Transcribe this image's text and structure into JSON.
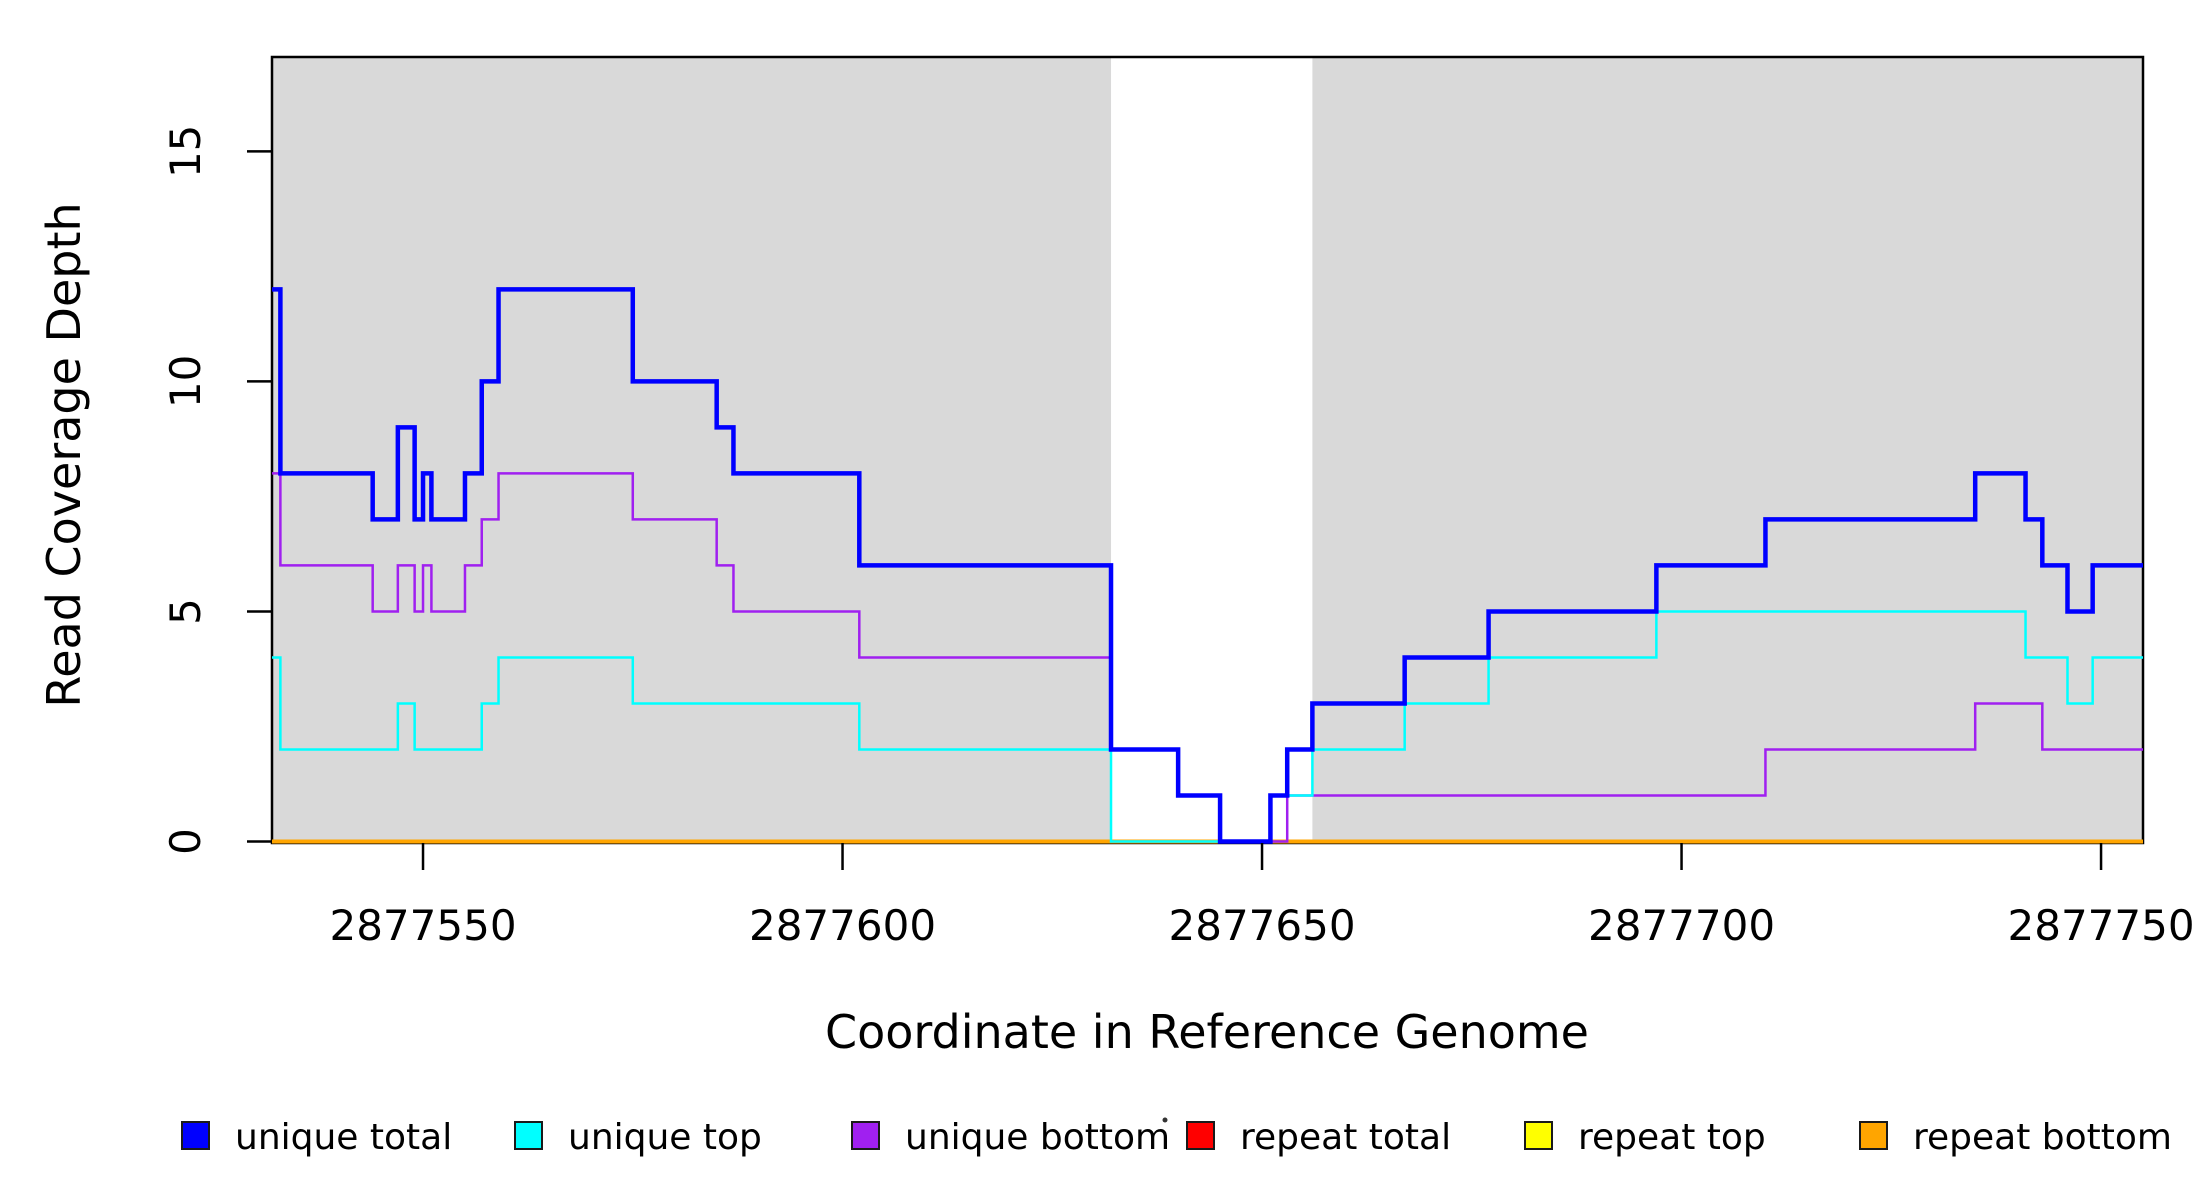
{
  "chart_data": {
    "type": "line",
    "step": true,
    "title": "",
    "xlabel": "Coordinate in Reference Genome",
    "ylabel": "Read Coverage Depth",
    "xlim": [
      2877532,
      2877755
    ],
    "ylim": [
      0,
      17.05
    ],
    "grid": false,
    "legend_position": "bottom",
    "x_ticks": {
      "values": [
        2877550,
        2877600,
        2877650,
        2877700,
        2877750
      ],
      "labels": [
        "2877550",
        "2877600",
        "2877650",
        "2877700",
        "2877750"
      ]
    },
    "y_ticks": {
      "values": [
        0,
        5,
        10,
        15
      ],
      "labels": [
        "0",
        "5",
        "10",
        "15"
      ]
    },
    "background_regions": [
      {
        "name": "shaded-region-left",
        "x0": 2877532,
        "x1": 2877632,
        "color": "#D9D9D9"
      },
      {
        "name": "shaded-region-right",
        "x0": 2877656,
        "x1": 2877755,
        "color": "#D9D9D9"
      }
    ],
    "series": [
      {
        "name": "repeat total",
        "color": "#FF0000",
        "width": 2.5,
        "steps": [
          [
            2877532,
            0
          ]
        ]
      },
      {
        "name": "repeat top",
        "color": "#FFFF00",
        "width": 2.5,
        "steps": [
          [
            2877532,
            0
          ]
        ]
      },
      {
        "name": "repeat bottom",
        "color": "#FFA500",
        "width": 4,
        "steps": [
          [
            2877532,
            0
          ]
        ]
      },
      {
        "name": "unique bottom",
        "color": "#A020F0",
        "width": 2.5,
        "steps": [
          [
            2877532,
            8
          ],
          [
            2877533,
            6
          ],
          [
            2877544,
            5
          ],
          [
            2877547,
            6
          ],
          [
            2877549,
            5
          ],
          [
            2877550,
            6
          ],
          [
            2877551,
            5
          ],
          [
            2877555,
            6
          ],
          [
            2877557,
            7
          ],
          [
            2877559,
            8
          ],
          [
            2877575,
            7
          ],
          [
            2877585,
            6
          ],
          [
            2877587,
            5
          ],
          [
            2877602,
            4
          ],
          [
            2877632,
            2
          ],
          [
            2877640,
            1
          ],
          [
            2877645,
            0
          ],
          [
            2877653,
            1
          ],
          [
            2877710,
            2
          ],
          [
            2877735,
            3
          ],
          [
            2877743,
            2
          ]
        ]
      },
      {
        "name": "unique top",
        "color": "#00FFFF",
        "width": 2.5,
        "steps": [
          [
            2877532,
            4
          ],
          [
            2877533,
            2
          ],
          [
            2877547,
            3
          ],
          [
            2877549,
            2
          ],
          [
            2877557,
            3
          ],
          [
            2877559,
            4
          ],
          [
            2877575,
            3
          ],
          [
            2877602,
            2
          ],
          [
            2877632,
            0
          ],
          [
            2877651,
            1
          ],
          [
            2877656,
            2
          ],
          [
            2877667,
            3
          ],
          [
            2877677,
            4
          ],
          [
            2877697,
            5
          ],
          [
            2877741,
            4
          ],
          [
            2877746,
            3
          ],
          [
            2877749,
            4
          ]
        ]
      },
      {
        "name": "unique total",
        "color": "#0000FF",
        "width": 4.5,
        "steps": [
          [
            2877532,
            12
          ],
          [
            2877533,
            8
          ],
          [
            2877544,
            7
          ],
          [
            2877547,
            9
          ],
          [
            2877549,
            7
          ],
          [
            2877550,
            8
          ],
          [
            2877551,
            7
          ],
          [
            2877555,
            8
          ],
          [
            2877557,
            10
          ],
          [
            2877559,
            12
          ],
          [
            2877575,
            10
          ],
          [
            2877585,
            9
          ],
          [
            2877587,
            8
          ],
          [
            2877602,
            6
          ],
          [
            2877632,
            2
          ],
          [
            2877640,
            1
          ],
          [
            2877645,
            0
          ],
          [
            2877651,
            1
          ],
          [
            2877653,
            2
          ],
          [
            2877656,
            3
          ],
          [
            2877667,
            4
          ],
          [
            2877677,
            5
          ],
          [
            2877697,
            6
          ],
          [
            2877710,
            7
          ],
          [
            2877735,
            8
          ],
          [
            2877741,
            7
          ],
          [
            2877743,
            6
          ],
          [
            2877746,
            5
          ],
          [
            2877749,
            6
          ]
        ]
      }
    ],
    "legend": [
      {
        "label": "unique total",
        "color": "#0000FF"
      },
      {
        "label": "unique top",
        "color": "#00FFFF"
      },
      {
        "label": "unique bottom",
        "color": "#A020F0"
      },
      {
        "label": "repeat total",
        "color": "#FF0000"
      },
      {
        "label": "repeat top",
        "color": "#FFFF00"
      },
      {
        "label": "repeat bottom",
        "color": "#FFA500"
      }
    ]
  }
}
